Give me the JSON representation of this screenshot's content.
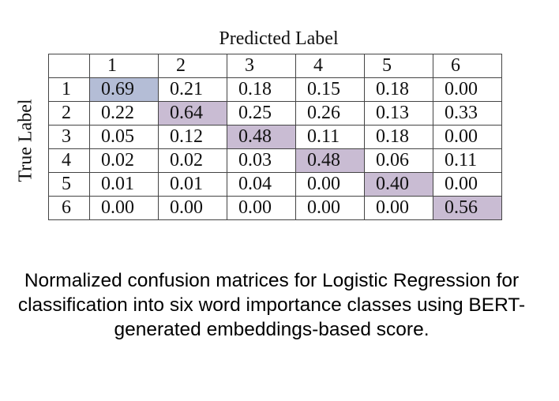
{
  "chart_data": {
    "type": "heatmap",
    "title": "Predicted Label",
    "ylabel": "True Label",
    "col_labels": [
      "1",
      "2",
      "3",
      "4",
      "5",
      "6"
    ],
    "row_labels": [
      "1",
      "2",
      "3",
      "4",
      "5",
      "6"
    ],
    "values": [
      [
        "0.69",
        "0.21",
        "0.18",
        "0.15",
        "0.18",
        "0.00"
      ],
      [
        "0.22",
        "0.64",
        "0.25",
        "0.26",
        "0.13",
        "0.33"
      ],
      [
        "0.05",
        "0.12",
        "0.48",
        "0.11",
        "0.18",
        "0.00"
      ],
      [
        "0.02",
        "0.02",
        "0.03",
        "0.48",
        "0.06",
        "0.11"
      ],
      [
        "0.01",
        "0.01",
        "0.04",
        "0.00",
        "0.40",
        "0.00"
      ],
      [
        "0.00",
        "0.00",
        "0.00",
        "0.00",
        "0.00",
        "0.56"
      ]
    ],
    "highlight": "diagonal",
    "highlight_colors": {
      "row1": "#b4bdd6",
      "others": "#c9bcd3"
    }
  },
  "caption": "Normalized confusion matrices for Logistic Regression for classification into six word importance classes using BERT-generated embeddings-based score."
}
